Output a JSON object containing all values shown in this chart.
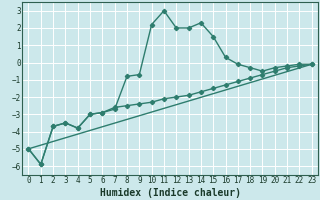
{
  "title": "",
  "xlabel": "Humidex (Indice chaleur)",
  "background_color": "#cce8eb",
  "grid_color": "#ffffff",
  "line_color": "#2e7d6e",
  "xlim": [
    -0.5,
    23.5
  ],
  "ylim": [
    -6.5,
    3.5
  ],
  "yticks": [
    -6,
    -5,
    -4,
    -3,
    -2,
    -1,
    0,
    1,
    2,
    3
  ],
  "xticks": [
    0,
    1,
    2,
    3,
    4,
    5,
    6,
    7,
    8,
    9,
    10,
    11,
    12,
    13,
    14,
    15,
    16,
    17,
    18,
    19,
    20,
    21,
    22,
    23
  ],
  "series1_x": [
    0,
    1,
    2,
    3,
    4,
    5,
    6,
    7,
    8,
    9,
    10,
    11,
    12,
    13,
    14,
    15,
    16,
    17,
    18,
    19,
    20,
    21,
    22,
    23
  ],
  "series1_y": [
    -5.0,
    -5.9,
    -3.7,
    -3.5,
    -3.8,
    -3.0,
    -2.9,
    -2.7,
    -0.8,
    -0.7,
    2.2,
    3.0,
    2.0,
    2.0,
    2.3,
    1.5,
    0.3,
    -0.1,
    -0.3,
    -0.5,
    -0.3,
    -0.2,
    -0.1,
    -0.1
  ],
  "series2_x": [
    0,
    1,
    2,
    3,
    4,
    5,
    6,
    7,
    8,
    9,
    10,
    11,
    12,
    13,
    14,
    15,
    16,
    17,
    18,
    19,
    20,
    21,
    22,
    23
  ],
  "series2_y": [
    -5.0,
    -5.9,
    -3.7,
    -3.5,
    -3.8,
    -3.0,
    -2.9,
    -2.6,
    -2.5,
    -2.4,
    -2.3,
    -2.1,
    -2.0,
    -1.9,
    -1.7,
    -1.5,
    -1.3,
    -1.1,
    -0.9,
    -0.7,
    -0.5,
    -0.3,
    -0.2,
    -0.1
  ],
  "series3_x": [
    0,
    23
  ],
  "series3_y": [
    -5.0,
    -0.1
  ],
  "marker": "D",
  "markersize": 2.2,
  "linewidth": 1.0,
  "tick_fontsize": 5.5,
  "xlabel_fontsize": 7.0
}
